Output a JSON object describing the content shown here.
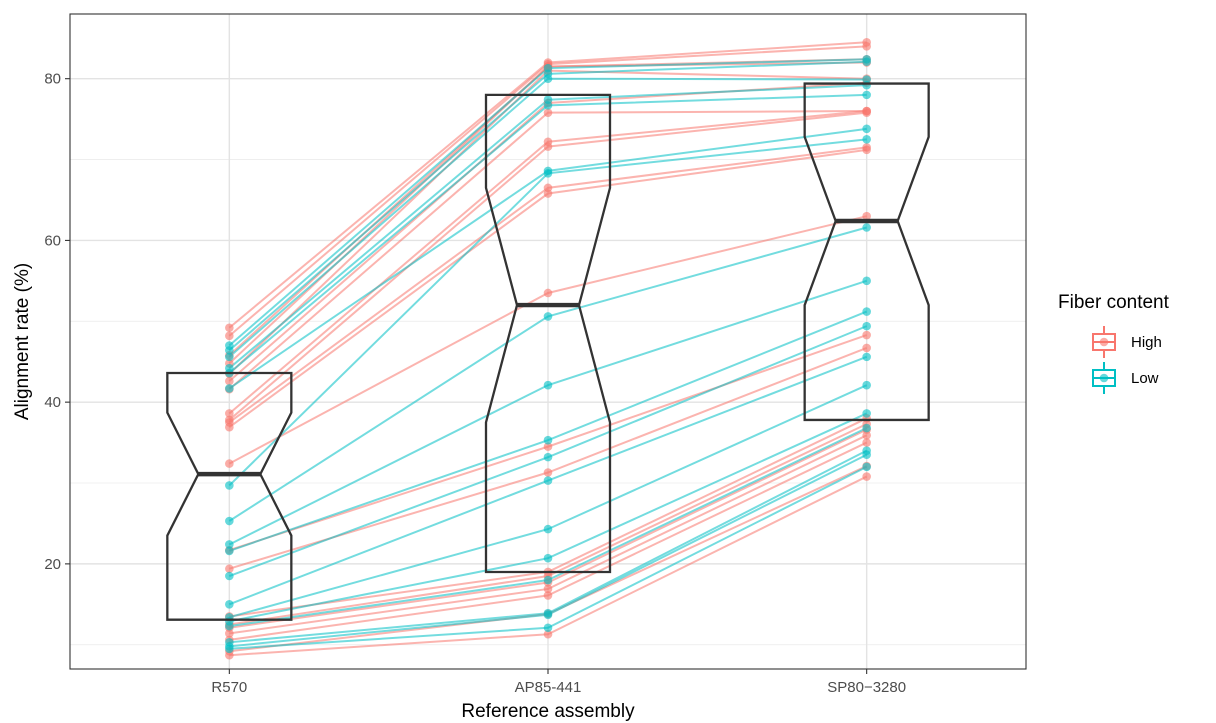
{
  "chart_data": {
    "type": "box-with-paired-points",
    "xlabel": "Reference assembly",
    "ylabel": "Alignment rate (%)",
    "categories": [
      "R570",
      "AP85-441",
      "SP80−3280"
    ],
    "ylim": [
      7,
      88
    ],
    "yticks": [
      20,
      40,
      60,
      80
    ],
    "grid": true,
    "legend": {
      "title": "Fiber content",
      "position": "right",
      "entries": [
        {
          "label": "High",
          "color": "#F8766D"
        },
        {
          "label": "Low",
          "color": "#00BFC4"
        }
      ]
    },
    "boxes": [
      {
        "category": "R570",
        "q1": 13.1,
        "median": 31.1,
        "q3": 43.6,
        "notch_low": 23.5,
        "notch_high": 38.7
      },
      {
        "category": "AP85-441",
        "q1": 19.0,
        "median": 52.0,
        "q3": 78.0,
        "notch_low": 37.5,
        "notch_high": 66.5
      },
      {
        "category": "SP80−3280",
        "q1": 37.8,
        "median": 62.4,
        "q3": 79.4,
        "notch_low": 52.0,
        "notch_high": 72.8
      }
    ],
    "series": [
      {
        "name": "High",
        "color": "#F8766D",
        "samples": [
          [
            49.2,
            82.0,
            84.5
          ],
          [
            48.2,
            81.8,
            84.0
          ],
          [
            45.8,
            81.5,
            82.4
          ],
          [
            44.8,
            81.5,
            82.0
          ],
          [
            43.5,
            81.0,
            80.0
          ],
          [
            42.6,
            77.0,
            79.5
          ],
          [
            41.6,
            75.8,
            76.0
          ],
          [
            38.6,
            72.2,
            76.0
          ],
          [
            37.8,
            71.6,
            75.8
          ],
          [
            37.5,
            66.5,
            71.5
          ],
          [
            36.9,
            65.8,
            71.2
          ],
          [
            32.4,
            53.5,
            63.0
          ],
          [
            21.7,
            34.5,
            48.3
          ],
          [
            19.4,
            31.3,
            46.7
          ],
          [
            13.5,
            19.0,
            38.0
          ],
          [
            12.5,
            18.5,
            37.3
          ],
          [
            12.1,
            17.7,
            36.6
          ],
          [
            11.4,
            16.9,
            35.9
          ],
          [
            10.6,
            16.1,
            35.0
          ],
          [
            9.2,
            13.8,
            32.1
          ],
          [
            8.7,
            11.3,
            30.8
          ]
        ]
      },
      {
        "name": "Low",
        "color": "#00BFC4",
        "samples": [
          [
            47.0,
            81.3,
            82.4
          ],
          [
            46.4,
            80.6,
            82.1
          ],
          [
            45.6,
            80.0,
            79.9
          ],
          [
            44.2,
            77.4,
            79.2
          ],
          [
            43.6,
            76.7,
            78.0
          ],
          [
            41.7,
            68.6,
            73.8
          ],
          [
            29.7,
            68.3,
            72.5
          ],
          [
            25.3,
            50.6,
            61.6
          ],
          [
            22.4,
            42.1,
            55.0
          ],
          [
            21.6,
            35.3,
            51.2
          ],
          [
            18.5,
            33.2,
            49.4
          ],
          [
            15.0,
            30.3,
            45.6
          ],
          [
            13.4,
            24.3,
            42.1
          ],
          [
            12.9,
            20.7,
            38.6
          ],
          [
            12.3,
            18.0,
            36.8
          ],
          [
            10.3,
            13.9,
            34.0
          ],
          [
            9.8,
            13.7,
            33.5
          ],
          [
            9.5,
            12.1,
            32.0
          ]
        ]
      }
    ]
  }
}
